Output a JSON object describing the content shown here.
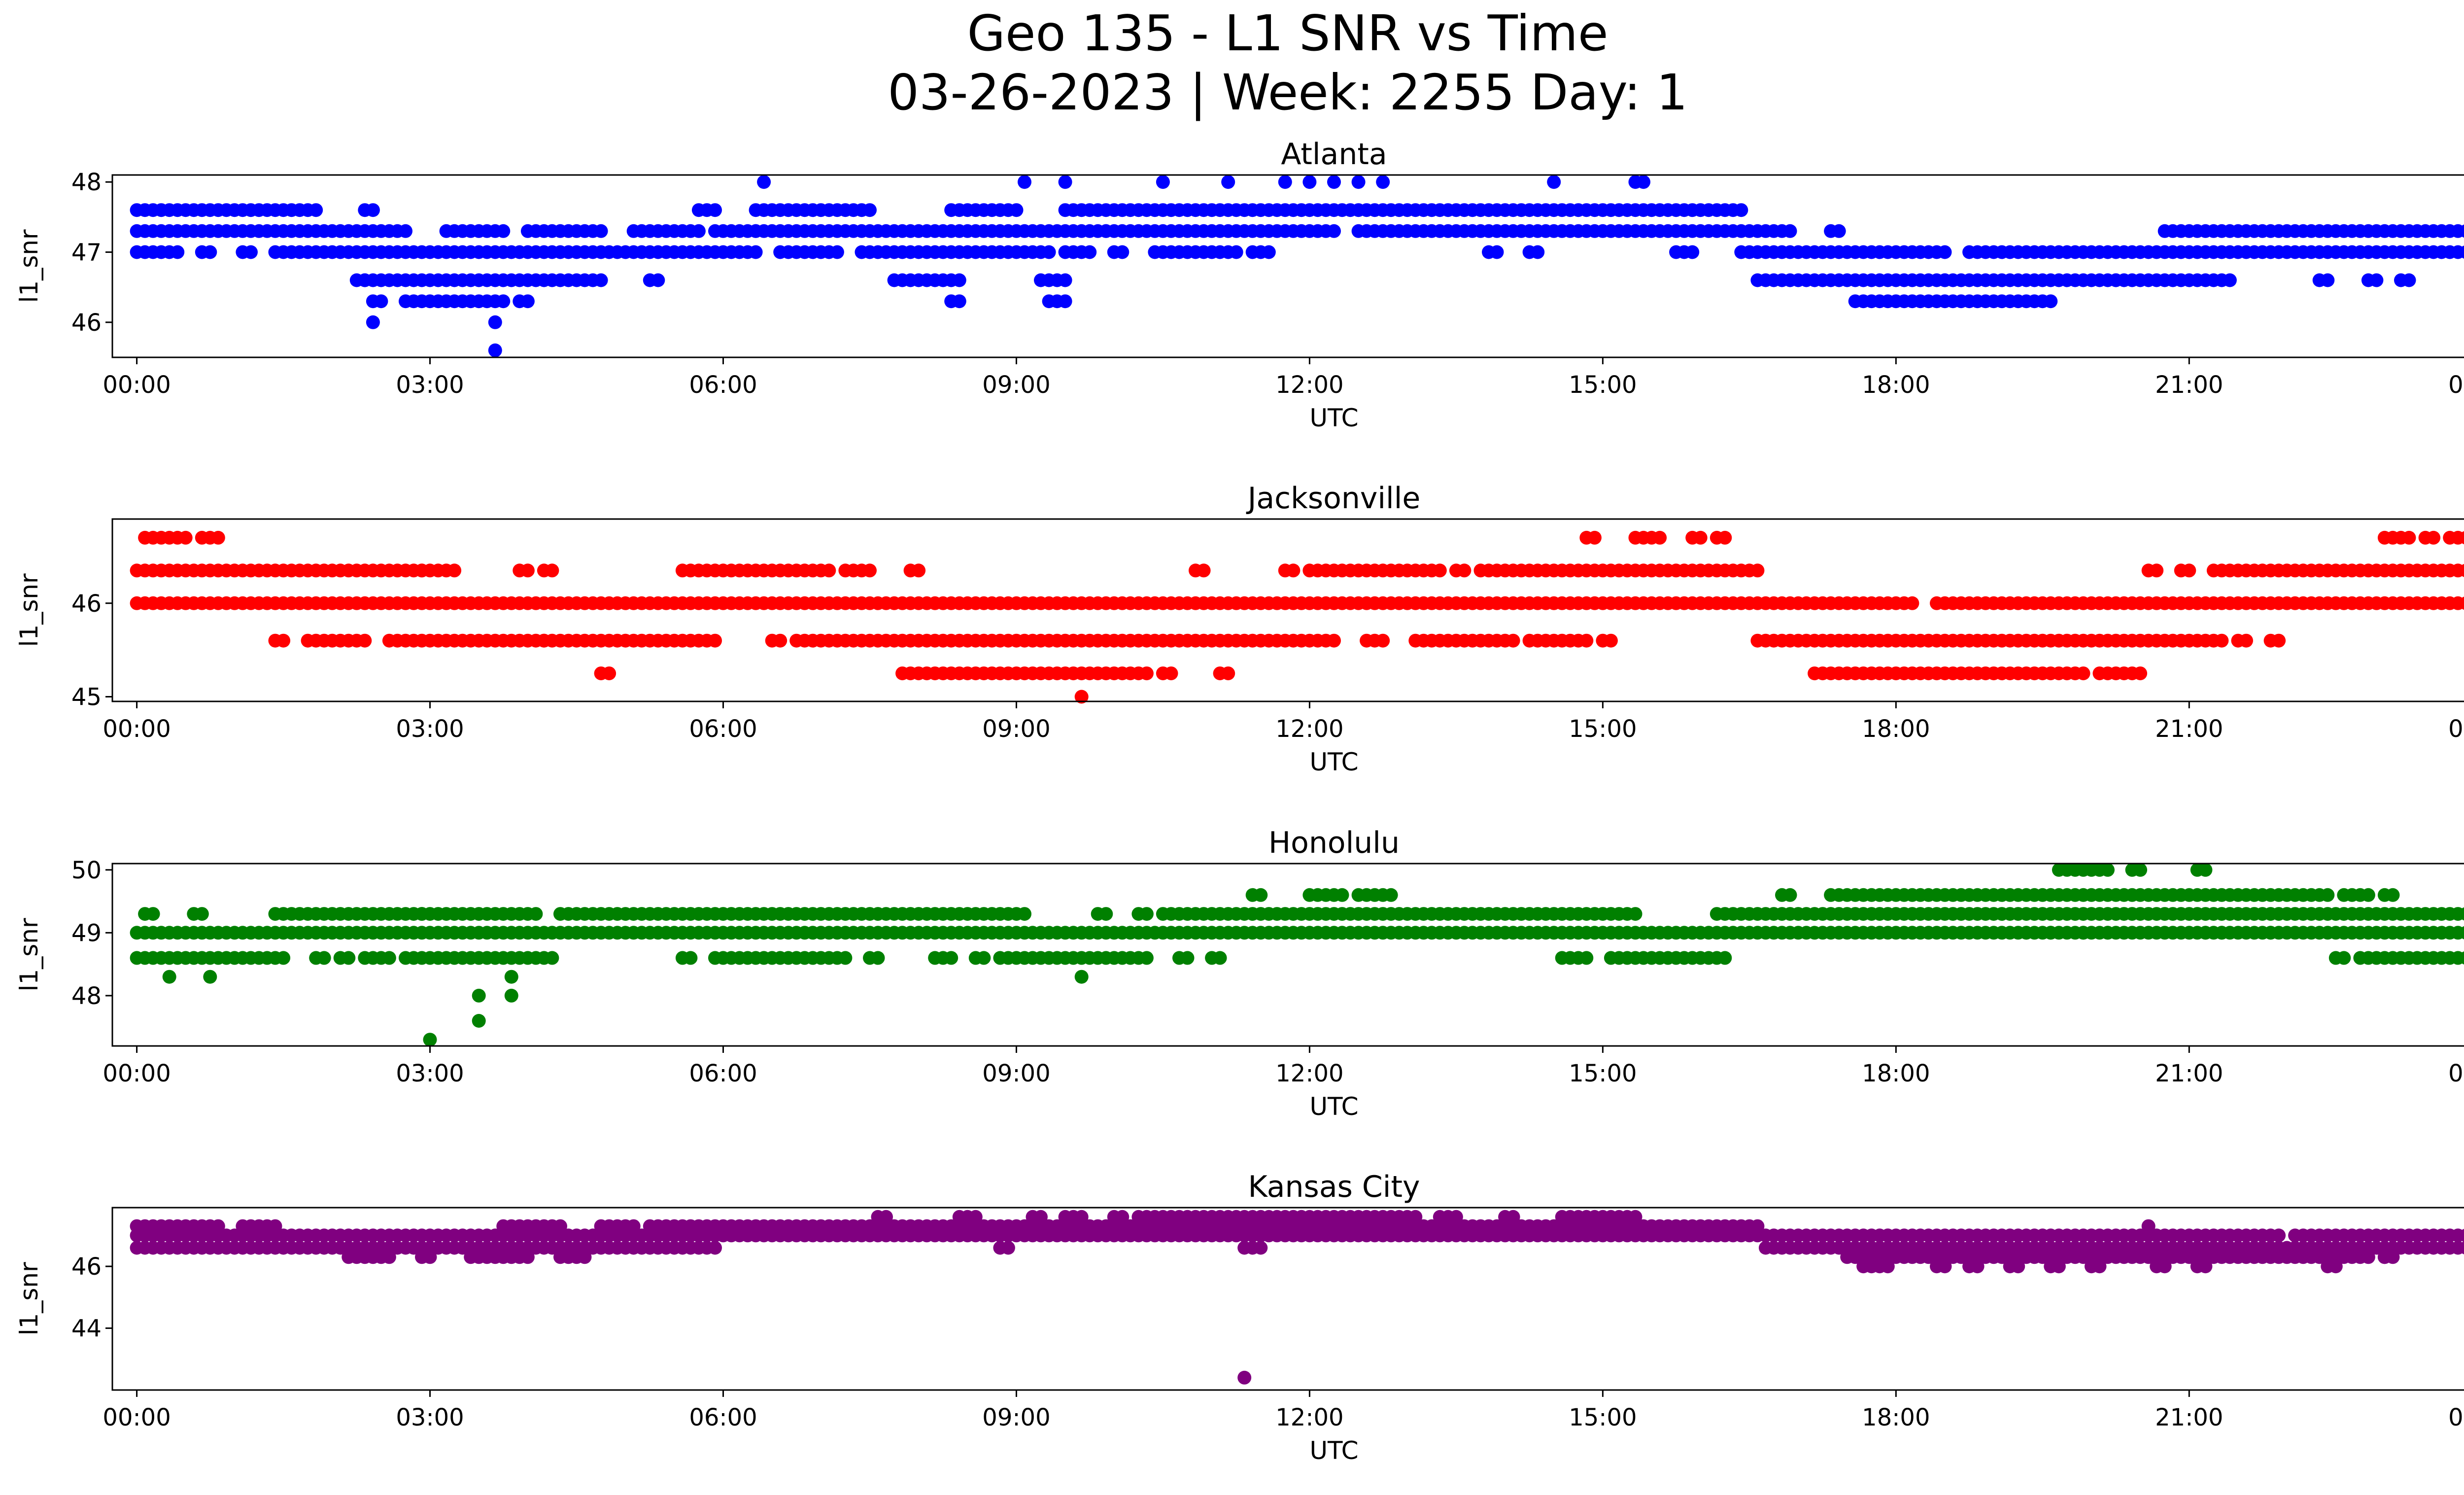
{
  "figure": {
    "title_line1": "Geo 135 - L1 SNR vs Time",
    "title_line2": "03-26-2023 | Week: 2255 Day: 1"
  },
  "chart_data": [
    {
      "type": "scatter",
      "title": "Atlanta",
      "xlabel": "UTC",
      "ylabel": "l1_snr",
      "color": "#0000ff",
      "xlim": [
        "23:45",
        "24:45"
      ],
      "ylim": [
        45.5,
        48.1
      ],
      "xticks": [
        "00:00",
        "03:00",
        "06:00",
        "09:00",
        "12:00",
        "15:00",
        "18:00",
        "21:00",
        "00:00"
      ],
      "yticks": [
        46,
        47,
        48
      ],
      "bands": [
        {
          "y": 47.6,
          "ranges": [
            [
              "00:00",
              "01:50"
            ],
            [
              "02:20",
              "02:25"
            ],
            [
              "05:45",
              "05:55"
            ],
            [
              "06:20",
              "07:30"
            ],
            [
              "08:20",
              "09:00"
            ],
            [
              "09:30",
              "16:25"
            ]
          ]
        },
        {
          "y": 47.3,
          "ranges": [
            [
              "00:00",
              "02:45"
            ],
            [
              "03:10",
              "03:15"
            ],
            [
              "03:20",
              "03:45"
            ],
            [
              "04:00",
              "04:45"
            ],
            [
              "05:05",
              "05:45"
            ],
            [
              "05:55",
              "06:20"
            ],
            [
              "06:20",
              "09:55"
            ],
            [
              "09:55",
              "11:55"
            ],
            [
              "12:00",
              "12:15"
            ],
            [
              "12:30",
              "16:55"
            ],
            [
              "17:20",
              "17:25"
            ],
            [
              "20:45",
              "24:00"
            ]
          ]
        },
        {
          "y": 47.0,
          "ranges": [
            [
              "00:00",
              "00:25"
            ],
            [
              "00:40",
              "00:45"
            ],
            [
              "01:05",
              "01:10"
            ],
            [
              "01:25",
              "06:20"
            ],
            [
              "06:35",
              "07:10"
            ],
            [
              "07:25",
              "09:20"
            ],
            [
              "09:30",
              "09:45"
            ],
            [
              "10:00",
              "10:05"
            ],
            [
              "10:25",
              "11:15"
            ],
            [
              "11:25",
              "11:35"
            ],
            [
              "13:50",
              "13:55"
            ],
            [
              "14:15",
              "14:20"
            ],
            [
              "15:45",
              "15:55"
            ],
            [
              "16:25",
              "18:30"
            ],
            [
              "18:45",
              "24:00"
            ]
          ]
        },
        {
          "y": 46.6,
          "ranges": [
            [
              "02:15",
              "02:20"
            ],
            [
              "02:20",
              "04:45"
            ],
            [
              "05:15",
              "05:20"
            ],
            [
              "07:45",
              "08:25"
            ],
            [
              "09:15",
              "09:30"
            ],
            [
              "16:35",
              "18:30"
            ],
            [
              "18:30",
              "20:15"
            ],
            [
              "20:15",
              "21:25"
            ],
            [
              "22:20",
              "22:25"
            ],
            [
              "22:50",
              "22:55"
            ],
            [
              "23:10",
              "23:15"
            ]
          ]
        },
        {
          "y": 46.3,
          "ranges": [
            [
              "02:25",
              "02:30"
            ],
            [
              "02:45",
              "03:35"
            ],
            [
              "03:40",
              "03:45"
            ],
            [
              "03:55",
              "04:00"
            ],
            [
              "08:20",
              "08:25"
            ],
            [
              "09:20",
              "09:30"
            ],
            [
              "17:35",
              "18:50"
            ],
            [
              "18:55",
              "19:35"
            ]
          ]
        }
      ],
      "singles": [
        [
          "02:25",
          46.0
        ],
        [
          "03:40",
          46.0
        ],
        [
          "03:40",
          45.6
        ],
        [
          "06:25",
          48.0
        ],
        [
          "09:05",
          48.0
        ],
        [
          "09:30",
          48.0
        ],
        [
          "10:30",
          48.0
        ],
        [
          "11:10",
          48.0
        ],
        [
          "11:45",
          48.0
        ],
        [
          "12:00",
          48.0
        ],
        [
          "12:15",
          48.0
        ],
        [
          "12:30",
          48.0
        ],
        [
          "12:45",
          48.0
        ],
        [
          "14:30",
          48.0
        ],
        [
          "15:20",
          48.0
        ],
        [
          "15:25",
          48.0
        ]
      ]
    },
    {
      "type": "scatter",
      "title": "Jacksonville",
      "xlabel": "UTC",
      "ylabel": "l1_snr",
      "color": "#ff0000",
      "xlim": [
        "23:45",
        "24:45"
      ],
      "ylim": [
        44.95,
        46.9
      ],
      "xticks": [
        "00:00",
        "03:00",
        "06:00",
        "09:00",
        "12:00",
        "15:00",
        "18:00",
        "21:00",
        "00:00"
      ],
      "yticks": [
        45,
        46
      ],
      "bands": [
        {
          "y": 46.7,
          "ranges": [
            [
              "00:05",
              "00:30"
            ],
            [
              "00:40",
              "00:50"
            ],
            [
              "14:50",
              "14:55"
            ],
            [
              "15:20",
              "15:35"
            ],
            [
              "15:55",
              "16:00"
            ],
            [
              "16:10",
              "16:15"
            ],
            [
              "23:00",
              "23:15"
            ],
            [
              "23:25",
              "23:30"
            ],
            [
              "23:40",
              "24:00"
            ]
          ]
        },
        {
          "y": 46.35,
          "ranges": [
            [
              "00:00",
              "02:55"
            ],
            [
              "02:55",
              "03:15"
            ],
            [
              "03:55",
              "04:00"
            ],
            [
              "04:10",
              "04:15"
            ],
            [
              "05:35",
              "07:05"
            ],
            [
              "07:15",
              "07:20"
            ],
            [
              "07:25",
              "07:30"
            ],
            [
              "07:55",
              "08:00"
            ],
            [
              "10:50",
              "10:55"
            ],
            [
              "11:45",
              "11:50"
            ],
            [
              "12:00",
              "13:20"
            ],
            [
              "13:30",
              "13:35"
            ],
            [
              "13:45",
              "16:35"
            ],
            [
              "20:35",
              "20:40"
            ],
            [
              "20:55",
              "21:00"
            ],
            [
              "21:15",
              "24:00"
            ]
          ]
        },
        {
          "y": 46.0,
          "ranges": [
            [
              "00:00",
              "18:10"
            ],
            [
              "18:25",
              "24:00"
            ]
          ]
        },
        {
          "y": 45.6,
          "ranges": [
            [
              "01:25",
              "01:30"
            ],
            [
              "01:45",
              "02:20"
            ],
            [
              "02:35",
              "04:10"
            ],
            [
              "04:10",
              "05:55"
            ],
            [
              "06:30",
              "06:35"
            ],
            [
              "06:45",
              "12:15"
            ],
            [
              "12:35",
              "12:45"
            ],
            [
              "13:05",
              "14:05"
            ],
            [
              "14:15",
              "14:50"
            ],
            [
              "15:00",
              "15:05"
            ],
            [
              "16:35",
              "21:20"
            ],
            [
              "21:30",
              "21:35"
            ],
            [
              "21:50",
              "21:55"
            ]
          ]
        },
        {
          "y": 45.25,
          "ranges": [
            [
              "04:45",
              "04:50"
            ],
            [
              "07:50",
              "10:20"
            ],
            [
              "10:30",
              "10:35"
            ],
            [
              "11:05",
              "11:10"
            ],
            [
              "17:10",
              "19:55"
            ],
            [
              "20:05",
              "20:30"
            ]
          ]
        }
      ],
      "singles": [
        [
          "09:40",
          45.0
        ]
      ]
    },
    {
      "type": "scatter",
      "title": "Honolulu",
      "xlabel": "UTC",
      "ylabel": "l1_snr",
      "color": "#008000",
      "xlim": [
        "23:45",
        "24:45"
      ],
      "ylim": [
        47.2,
        50.1
      ],
      "xticks": [
        "00:00",
        "03:00",
        "06:00",
        "09:00",
        "12:00",
        "15:00",
        "18:00",
        "21:00",
        "00:00"
      ],
      "yticks": [
        48,
        49,
        50
      ],
      "bands": [
        {
          "y": 50.0,
          "ranges": [
            [
              "19:40",
              "20:10"
            ],
            [
              "20:25",
              "20:30"
            ],
            [
              "21:05",
              "21:10"
            ]
          ]
        },
        {
          "y": 49.6,
          "ranges": [
            [
              "11:25",
              "11:30"
            ],
            [
              "12:00",
              "12:20"
            ],
            [
              "12:30",
              "12:50"
            ],
            [
              "16:50",
              "16:55"
            ],
            [
              "17:20",
              "22:25"
            ],
            [
              "22:35",
              "22:50"
            ],
            [
              "23:00",
              "23:05"
            ]
          ]
        },
        {
          "y": 49.3,
          "ranges": [
            [
              "00:05",
              "00:10"
            ],
            [
              "00:35",
              "00:40"
            ],
            [
              "01:25",
              "02:55"
            ],
            [
              "02:55",
              "03:55"
            ],
            [
              "04:00",
              "04:05"
            ],
            [
              "04:20",
              "09:05"
            ],
            [
              "09:50",
              "09:55"
            ],
            [
              "10:15",
              "10:20"
            ],
            [
              "10:30",
              "15:20"
            ],
            [
              "16:10",
              "24:00"
            ]
          ]
        },
        {
          "y": 49.0,
          "ranges": [
            [
              "00:00",
              "24:00"
            ]
          ]
        },
        {
          "y": 48.6,
          "ranges": [
            [
              "00:00",
              "01:30"
            ],
            [
              "01:50",
              "01:55"
            ],
            [
              "02:05",
              "02:10"
            ],
            [
              "02:20",
              "02:25"
            ],
            [
              "02:30",
              "02:35"
            ],
            [
              "02:45",
              "03:15"
            ],
            [
              "03:20",
              "04:15"
            ],
            [
              "05:35",
              "05:40"
            ],
            [
              "05:55",
              "07:15"
            ],
            [
              "07:30",
              "07:35"
            ],
            [
              "08:10",
              "08:20"
            ],
            [
              "08:35",
              "08:40"
            ],
            [
              "08:50",
              "10:20"
            ],
            [
              "10:40",
              "10:45"
            ],
            [
              "11:00",
              "11:05"
            ],
            [
              "14:35",
              "14:50"
            ],
            [
              "15:05",
              "16:15"
            ],
            [
              "22:30",
              "22:35"
            ],
            [
              "22:45",
              "23:55"
            ]
          ]
        }
      ],
      "singles": [
        [
          "00:20",
          48.3
        ],
        [
          "00:45",
          48.3
        ],
        [
          "03:30",
          48.0
        ],
        [
          "03:50",
          48.0
        ],
        [
          "03:50",
          48.3
        ],
        [
          "03:30",
          47.6
        ],
        [
          "03:00",
          47.3
        ],
        [
          "09:40",
          48.3
        ],
        [
          "19:55",
          49.0
        ],
        [
          "20:10",
          49.0
        ],
        [
          "21:10",
          49.0
        ],
        [
          "21:20",
          49.0
        ],
        [
          "19:20",
          49.0
        ],
        [
          "19:35",
          49.0
        ],
        [
          "21:50",
          49.0
        ]
      ]
    },
    {
      "type": "scatter",
      "title": "Kansas City",
      "xlabel": "UTC",
      "ylabel": "l1_snr",
      "color": "#800080",
      "xlim": [
        "23:45",
        "24:45"
      ],
      "ylim": [
        42.0,
        47.9
      ],
      "xticks": [
        "00:00",
        "03:00",
        "06:00",
        "09:00",
        "12:00",
        "15:00",
        "18:00",
        "21:00",
        "00:00"
      ],
      "yticks": [
        44,
        46
      ],
      "bands": [
        {
          "y": 47.6,
          "ranges": [
            [
              "07:35",
              "07:40"
            ],
            [
              "08:25",
              "08:35"
            ],
            [
              "09:10",
              "09:15"
            ],
            [
              "09:30",
              "09:40"
            ],
            [
              "10:00",
              "10:05"
            ],
            [
              "10:15",
              "13:05"
            ],
            [
              "13:20",
              "13:30"
            ],
            [
              "14:00",
              "14:05"
            ],
            [
              "14:35",
              "15:20"
            ]
          ]
        },
        {
          "y": 47.3,
          "ranges": [
            [
              "00:00",
              "00:50"
            ],
            [
              "01:05",
              "01:25"
            ],
            [
              "03:45",
              "04:20"
            ],
            [
              "04:45",
              "05:05"
            ],
            [
              "05:15",
              "05:55"
            ],
            [
              "06:00",
              "16:35"
            ]
          ]
        },
        {
          "y": 47.0,
          "ranges": [
            [
              "00:00",
              "21:55"
            ],
            [
              "22:05",
              "24:00"
            ]
          ]
        },
        {
          "y": 46.6,
          "ranges": [
            [
              "00:00",
              "05:55"
            ],
            [
              "08:50",
              "08:55"
            ],
            [
              "11:20",
              "11:30"
            ],
            [
              "16:40",
              "24:00"
            ]
          ]
        },
        {
          "y": 46.3,
          "ranges": [
            [
              "02:10",
              "02:35"
            ],
            [
              "02:55",
              "03:00"
            ],
            [
              "03:25",
              "04:00"
            ],
            [
              "04:20",
              "04:35"
            ],
            [
              "17:30",
              "22:50"
            ],
            [
              "23:00",
              "23:05"
            ]
          ]
        },
        {
          "y": 46.0,
          "ranges": [
            [
              "17:40",
              "17:55"
            ],
            [
              "18:25",
              "18:30"
            ],
            [
              "18:45",
              "18:50"
            ],
            [
              "19:10",
              "19:15"
            ],
            [
              "19:35",
              "19:40"
            ],
            [
              "20:00",
              "20:05"
            ],
            [
              "20:40",
              "20:45"
            ],
            [
              "21:05",
              "21:10"
            ],
            [
              "22:25",
              "22:30"
            ]
          ]
        }
      ],
      "singles": [
        [
          "11:20",
          42.4
        ],
        [
          "17:55",
          47.0
        ],
        [
          "20:35",
          47.3
        ],
        [
          "23:00",
          46.3
        ]
      ]
    }
  ]
}
